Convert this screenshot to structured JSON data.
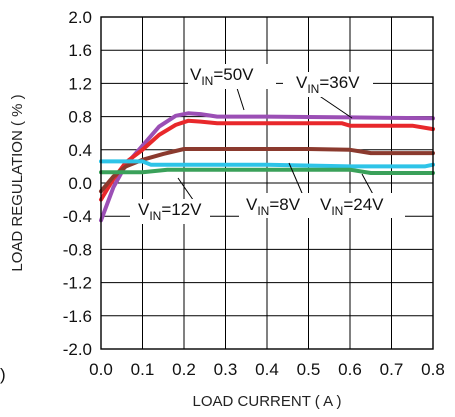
{
  "chart_data": {
    "type": "line",
    "title": "",
    "xlabel": "LOAD CURRENT ( A )",
    "ylabel": "LOAD REGULATION ( % )",
    "xlim": [
      0.0,
      0.8
    ],
    "ylim": [
      -2.0,
      2.0
    ],
    "grid": true,
    "legend": "none",
    "x_ticks": [
      "0.0",
      "0.1",
      "0.2",
      "0.3",
      "0.4",
      "0.5",
      "0.6",
      "0.7",
      "0.8"
    ],
    "y_ticks": [
      "2.0",
      "1.6",
      "1.2",
      "0.8",
      "0.4",
      "0.0",
      "-0.4",
      "-0.8",
      "-1.2",
      "-1.6",
      "-2.0"
    ],
    "edge_mark": ")",
    "series": [
      {
        "color": "#9b4fb5",
        "x": [
          0.0,
          0.03,
          0.06,
          0.1,
          0.14,
          0.18,
          0.21,
          0.24,
          0.28,
          0.4,
          0.6,
          0.8
        ],
        "y": [
          -0.45,
          -0.05,
          0.22,
          0.45,
          0.68,
          0.81,
          0.84,
          0.83,
          0.8,
          0.8,
          0.79,
          0.78
        ]
      },
      {
        "color": "#e8282b",
        "x": [
          0.0,
          0.03,
          0.06,
          0.1,
          0.14,
          0.18,
          0.21,
          0.24,
          0.28,
          0.4,
          0.58,
          0.6,
          0.75,
          0.8
        ],
        "y": [
          -0.2,
          0.05,
          0.25,
          0.4,
          0.58,
          0.7,
          0.75,
          0.74,
          0.72,
          0.72,
          0.72,
          0.69,
          0.69,
          0.65
        ]
      },
      {
        "color": "#8b3a2e",
        "x": [
          0.0,
          0.03,
          0.06,
          0.1,
          0.15,
          0.2,
          0.3,
          0.5,
          0.6,
          0.65,
          0.8
        ],
        "y": [
          -0.1,
          0.08,
          0.2,
          0.28,
          0.35,
          0.41,
          0.41,
          0.41,
          0.4,
          0.36,
          0.36
        ]
      },
      {
        "color": "#2ec4e8",
        "x": [
          0.0,
          0.1,
          0.12,
          0.2,
          0.4,
          0.6,
          0.7,
          0.78,
          0.8
        ],
        "y": [
          0.26,
          0.26,
          0.22,
          0.22,
          0.22,
          0.2,
          0.2,
          0.2,
          0.22
        ]
      },
      {
        "color": "#3aa15a",
        "x": [
          0.0,
          0.1,
          0.16,
          0.3,
          0.6,
          0.65,
          0.8
        ],
        "y": [
          0.13,
          0.13,
          0.16,
          0.16,
          0.16,
          0.12,
          0.12
        ]
      }
    ],
    "annotations": [
      {
        "base": "V",
        "sub": "IN",
        "value": "=50V"
      },
      {
        "base": "V",
        "sub": "IN",
        "value": "=36V"
      },
      {
        "base": "V",
        "sub": "IN",
        "value": "=12V"
      },
      {
        "base": "V",
        "sub": "IN",
        "value": "=8V"
      },
      {
        "base": "V",
        "sub": "IN",
        "value": "=24V"
      }
    ]
  }
}
